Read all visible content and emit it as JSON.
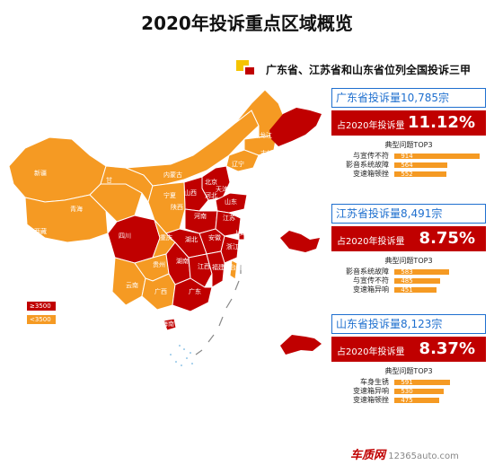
{
  "title": "2020年投诉重点区域概览",
  "header_text": "广东省、江苏省和山东省位列全国投诉三甲",
  "colors": {
    "high": "#c00000",
    "low": "#f59a23",
    "accent_blue": "#1e6fcf",
    "highlight_yellow": "#f5c400"
  },
  "legend": [
    {
      "label": "≥3500",
      "color": "#c00000"
    },
    {
      "label": "<3500",
      "color": "#f59a23"
    }
  ],
  "map_labels": [
    "黑龙江",
    "吉林",
    "辽宁",
    "内蒙古",
    "新疆",
    "甘",
    "宁夏",
    "北京",
    "天津",
    "河北",
    "山西",
    "陕西",
    "青海",
    "西藏",
    "四川",
    "重庆",
    "湖北",
    "河南",
    "山东",
    "江苏",
    "安徽",
    "上海",
    "浙江",
    "湖南",
    "江西",
    "福建",
    "台湾",
    "贵州",
    "云南",
    "广西",
    "广东",
    "海南"
  ],
  "chart_data": {
    "type": "table",
    "title": "2020年投诉重点区域概览",
    "subtitle": "广东省、江苏省和山东省位列全国投诉三甲",
    "legend": [
      "≥3500",
      "<3500"
    ],
    "provinces": [
      {
        "header": "广东省投诉量10,785宗",
        "complaints": 10785,
        "share_label": "占2020年投诉量",
        "share": "11.12%",
        "top_title": "典型问题TOP3",
        "top3": [
          {
            "label": "与宣传不符",
            "value": 914
          },
          {
            "label": "影音系统故障",
            "value": 564
          },
          {
            "label": "变速箱顿挫",
            "value": 552
          }
        ]
      },
      {
        "header": "江苏省投诉量8,491宗",
        "complaints": 8491,
        "share_label": "占2020年投诉量",
        "share": "8.75%",
        "top_title": "典型问题TOP3",
        "top3": [
          {
            "label": "影音系统故障",
            "value": 583
          },
          {
            "label": "与宣传不符",
            "value": 485
          },
          {
            "label": "变速箱异响",
            "value": 451
          }
        ]
      },
      {
        "header": "山东省投诉量8,123宗",
        "complaints": 8123,
        "share_label": "占2020年投诉量",
        "share": "8.37%",
        "top_title": "典型问题TOP3",
        "top3": [
          {
            "label": "车身生锈",
            "value": 591
          },
          {
            "label": "变速箱异响",
            "value": 530
          },
          {
            "label": "变速箱顿挫",
            "value": 475
          }
        ]
      }
    ]
  },
  "footer": {
    "brand": "车质网",
    "url": "12365auto.com"
  }
}
